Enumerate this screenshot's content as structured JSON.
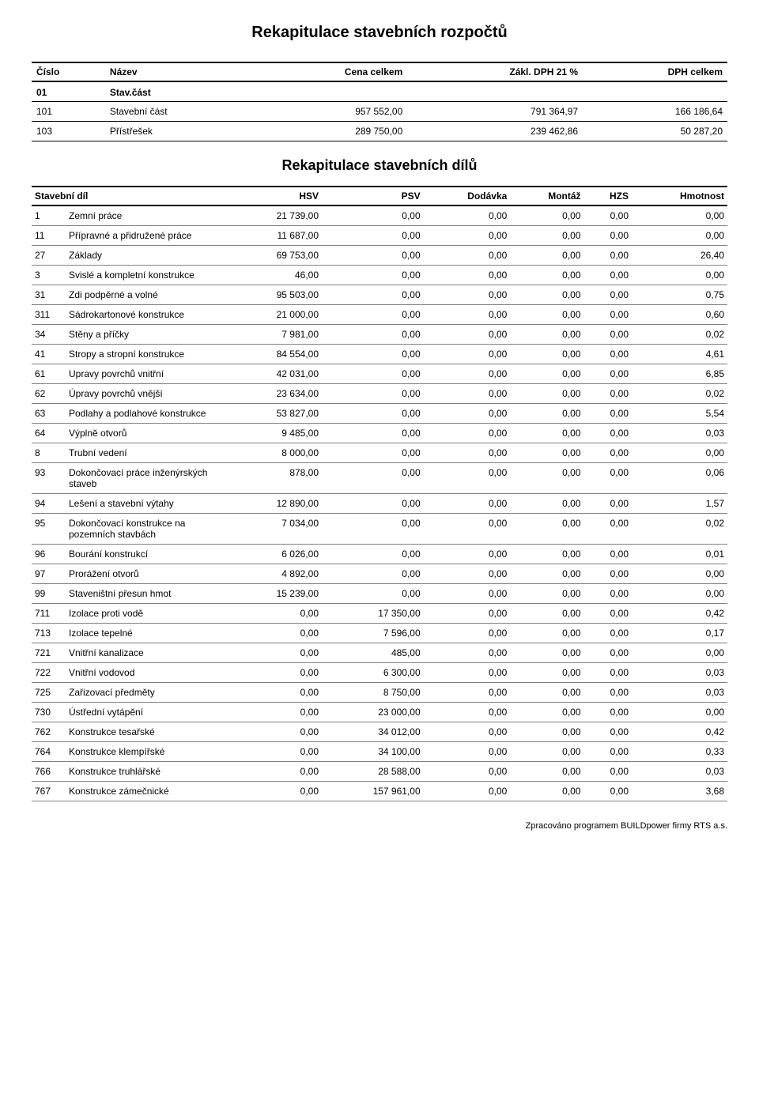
{
  "title1": "Rekapitulace stavebních rozpočtů",
  "title2": "Rekapitulace stavebních dílů",
  "footer": "Zpracováno programem BUILDpower firmy RTS a.s.",
  "t1": {
    "headers": [
      "Číslo",
      "Název",
      "Cena celkem",
      "Zákl. DPH 21 %",
      "DPH celkem"
    ],
    "group": {
      "cislo": "01",
      "nazev": "Stav.část"
    },
    "rows": [
      {
        "cislo": "101",
        "nazev": "Stavební část",
        "celkem": "957 552,00",
        "zakl": "791 364,97",
        "dph": "166 186,64"
      },
      {
        "cislo": "103",
        "nazev": "Přístřešek",
        "celkem": "289 750,00",
        "zakl": "239 462,86",
        "dph": "50 287,20"
      }
    ]
  },
  "t2": {
    "headers": [
      "Stavební díl",
      "",
      "HSV",
      "PSV",
      "Dodávka",
      "Montáž",
      "HZS",
      "Hmotnost"
    ],
    "rows": [
      {
        "c0": "1",
        "c1": "Zemní práce",
        "v": [
          "21 739,00",
          "0,00",
          "0,00",
          "0,00",
          "0,00",
          "0,00"
        ]
      },
      {
        "c0": "11",
        "c1": "Přípravné a přidružené práce",
        "v": [
          "11 687,00",
          "0,00",
          "0,00",
          "0,00",
          "0,00",
          "0,00"
        ]
      },
      {
        "c0": "27",
        "c1": "Základy",
        "v": [
          "69 753,00",
          "0,00",
          "0,00",
          "0,00",
          "0,00",
          "26,40"
        ]
      },
      {
        "c0": "3",
        "c1": "Svislé a kompletní konstrukce",
        "v": [
          "46,00",
          "0,00",
          "0,00",
          "0,00",
          "0,00",
          "0,00"
        ]
      },
      {
        "c0": "31",
        "c1": "Zdi podpěrné a volné",
        "v": [
          "95 503,00",
          "0,00",
          "0,00",
          "0,00",
          "0,00",
          "0,75"
        ]
      },
      {
        "c0": "311",
        "c1": "Sádrokartonové konstrukce",
        "v": [
          "21 000,00",
          "0,00",
          "0,00",
          "0,00",
          "0,00",
          "0,60"
        ]
      },
      {
        "c0": "34",
        "c1": "Stěny a příčky",
        "v": [
          "7 981,00",
          "0,00",
          "0,00",
          "0,00",
          "0,00",
          "0,02"
        ]
      },
      {
        "c0": "41",
        "c1": "Stropy a stropní konstrukce",
        "v": [
          "84 554,00",
          "0,00",
          "0,00",
          "0,00",
          "0,00",
          "4,61"
        ]
      },
      {
        "c0": "61",
        "c1": "Upravy povrchů vnitřní",
        "v": [
          "42 031,00",
          "0,00",
          "0,00",
          "0,00",
          "0,00",
          "6,85"
        ]
      },
      {
        "c0": "62",
        "c1": "Úpravy povrchů vnější",
        "v": [
          "23 634,00",
          "0,00",
          "0,00",
          "0,00",
          "0,00",
          "0,02"
        ]
      },
      {
        "c0": "63",
        "c1": "Podlahy a podlahové konstrukce",
        "v": [
          "53 827,00",
          "0,00",
          "0,00",
          "0,00",
          "0,00",
          "5,54"
        ]
      },
      {
        "c0": "64",
        "c1": "Výplně otvorů",
        "v": [
          "9 485,00",
          "0,00",
          "0,00",
          "0,00",
          "0,00",
          "0,03"
        ]
      },
      {
        "c0": "8",
        "c1": "Trubní vedení",
        "v": [
          "8 000,00",
          "0,00",
          "0,00",
          "0,00",
          "0,00",
          "0,00"
        ]
      },
      {
        "c0": "93",
        "c1": "Dokončovací práce inženýrských staveb",
        "v": [
          "878,00",
          "0,00",
          "0,00",
          "0,00",
          "0,00",
          "0,06"
        ]
      },
      {
        "c0": "94",
        "c1": "Lešení a stavební výtahy",
        "v": [
          "12 890,00",
          "0,00",
          "0,00",
          "0,00",
          "0,00",
          "1,57"
        ]
      },
      {
        "c0": "95",
        "c1": "Dokončovací konstrukce na pozemních stavbách",
        "v": [
          "7 034,00",
          "0,00",
          "0,00",
          "0,00",
          "0,00",
          "0,02"
        ]
      },
      {
        "c0": "96",
        "c1": "Bourání konstrukcí",
        "v": [
          "6 026,00",
          "0,00",
          "0,00",
          "0,00",
          "0,00",
          "0,01"
        ]
      },
      {
        "c0": "97",
        "c1": "Prorážení otvorů",
        "v": [
          "4 892,00",
          "0,00",
          "0,00",
          "0,00",
          "0,00",
          "0,00"
        ]
      },
      {
        "c0": "99",
        "c1": "Staveništní přesun hmot",
        "v": [
          "15 239,00",
          "0,00",
          "0,00",
          "0,00",
          "0,00",
          "0,00"
        ]
      },
      {
        "c0": "711",
        "c1": "Izolace proti vodě",
        "v": [
          "0,00",
          "17 350,00",
          "0,00",
          "0,00",
          "0,00",
          "0,42"
        ]
      },
      {
        "c0": "713",
        "c1": "Izolace tepelné",
        "v": [
          "0,00",
          "7 596,00",
          "0,00",
          "0,00",
          "0,00",
          "0,17"
        ]
      },
      {
        "c0": "721",
        "c1": "Vnitřní kanalizace",
        "v": [
          "0,00",
          "485,00",
          "0,00",
          "0,00",
          "0,00",
          "0,00"
        ]
      },
      {
        "c0": "722",
        "c1": "Vnitřní vodovod",
        "v": [
          "0,00",
          "6 300,00",
          "0,00",
          "0,00",
          "0,00",
          "0,03"
        ]
      },
      {
        "c0": "725",
        "c1": "Zařizovací předměty",
        "v": [
          "0,00",
          "8 750,00",
          "0,00",
          "0,00",
          "0,00",
          "0,03"
        ]
      },
      {
        "c0": "730",
        "c1": "Ústřední vytápění",
        "v": [
          "0,00",
          "23 000,00",
          "0,00",
          "0,00",
          "0,00",
          "0,00"
        ]
      },
      {
        "c0": "762",
        "c1": "Konstrukce tesařské",
        "v": [
          "0,00",
          "34 012,00",
          "0,00",
          "0,00",
          "0,00",
          "0,42"
        ]
      },
      {
        "c0": "764",
        "c1": "Konstrukce klempířské",
        "v": [
          "0,00",
          "34 100,00",
          "0,00",
          "0,00",
          "0,00",
          "0,33"
        ]
      },
      {
        "c0": "766",
        "c1": "Konstrukce truhlářské",
        "v": [
          "0,00",
          "28 588,00",
          "0,00",
          "0,00",
          "0,00",
          "0,03"
        ]
      },
      {
        "c0": "767",
        "c1": "Konstrukce zámečnické",
        "v": [
          "0,00",
          "157 961,00",
          "0,00",
          "0,00",
          "0,00",
          "3,68"
        ]
      }
    ]
  }
}
